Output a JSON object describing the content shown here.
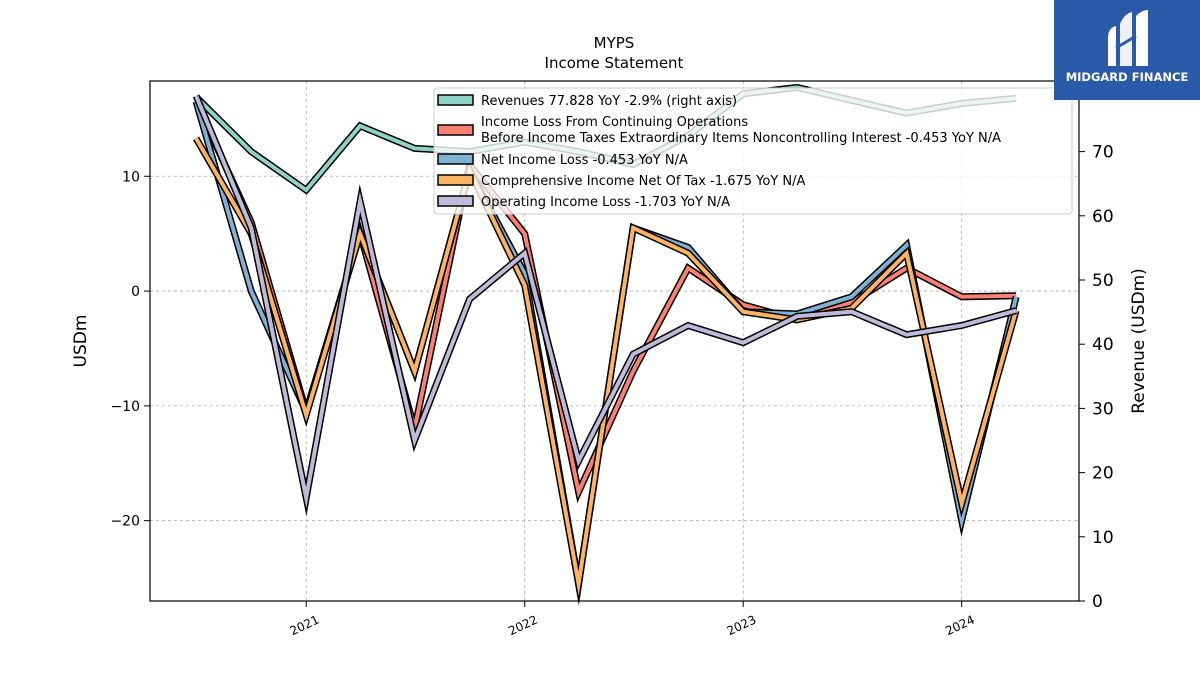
{
  "title": "MYPS",
  "subtitle": "Income Statement",
  "logo": {
    "text": "MIDGARD FINANCE",
    "color": "#2a5aa8"
  },
  "chart_data": {
    "type": "line",
    "title": "MYPS",
    "subtitle": "Income Statement",
    "ylabel_left": "USDm",
    "ylabel_right": "Revenue (USDm)",
    "left_ylim": [
      -27,
      18.3
    ],
    "right_ylim": [
      0,
      81
    ],
    "left_ticks": [
      10,
      0,
      -10,
      -20
    ],
    "left_tick_labels": [
      "10",
      "0",
      "−10",
      "−20"
    ],
    "right_ticks": [
      0,
      10,
      20,
      30,
      40,
      50,
      60,
      70
    ],
    "right_tick_labels": [
      "0",
      "10",
      "20",
      "30",
      "40",
      "50",
      "60",
      "70"
    ],
    "x_ticks": [
      "2021",
      "2022",
      "2023",
      "2024"
    ],
    "grid": true,
    "legend_position": "top-right",
    "x": [
      "2020-07-01",
      "2020-10-01",
      "2021-01-01",
      "2021-04-01",
      "2021-07-01",
      "2021-10-01",
      "2022-01-01",
      "2022-04-01",
      "2022-07-01",
      "2022-10-01",
      "2023-01-01",
      "2023-04-01",
      "2023-07-01",
      "2023-10-01",
      "2024-01-01",
      "2024-04-01"
    ],
    "series": [
      {
        "name": "Revenues  77.828 YoY -2.9% (right axis)",
        "axis": "right",
        "color": "#8dd3c7",
        "values": [
          78.5,
          70.0,
          64.0,
          74.0,
          70.5,
          70.0,
          71.5,
          70.0,
          68.0,
          72.5,
          79.0,
          80.0,
          78.0,
          76.0,
          77.5,
          78.3
        ]
      },
      {
        "name": "Income Loss From Continuing Operations\nBefore Income Taxes Extraordinary Items Noncontrolling Interest  -0.453 YoY N/A",
        "axis": "left",
        "color": "#fb8072",
        "values": [
          16.5,
          6.0,
          -10.5,
          5.0,
          -12.0,
          11.0,
          5.0,
          -17.5,
          -7.0,
          2.0,
          -1.2,
          -2.5,
          -1.0,
          2.0,
          -0.5,
          -0.4
        ]
      },
      {
        "name": "Net Income Loss  -0.453 YoY N/A",
        "axis": "left",
        "color": "#80b1d3",
        "values": [
          16.5,
          0.0,
          -10.5,
          5.0,
          -7.0,
          10.5,
          1.5,
          -25.5,
          5.5,
          3.8,
          -1.8,
          -2.0,
          -0.5,
          4.0,
          -20.0,
          -0.5
        ]
      },
      {
        "name": "Comprehensive Income Net Of Tax  -1.675 YoY N/A",
        "axis": "left",
        "color": "#fdb462",
        "values": [
          13.3,
          5.0,
          -10.8,
          5.0,
          -7.0,
          10.5,
          0.5,
          -25.5,
          5.5,
          3.3,
          -1.8,
          -2.5,
          -1.5,
          3.3,
          -18.5,
          -1.7
        ]
      },
      {
        "name": "Operating Income Loss  -1.703 YoY N/A",
        "axis": "left",
        "color": "#bebada",
        "values": [
          17.0,
          5.5,
          -18.0,
          7.8,
          -13.0,
          -0.7,
          3.3,
          -14.8,
          -5.5,
          -3.0,
          -4.5,
          -2.2,
          -1.8,
          -3.8,
          -3.0,
          -1.7
        ]
      }
    ]
  }
}
